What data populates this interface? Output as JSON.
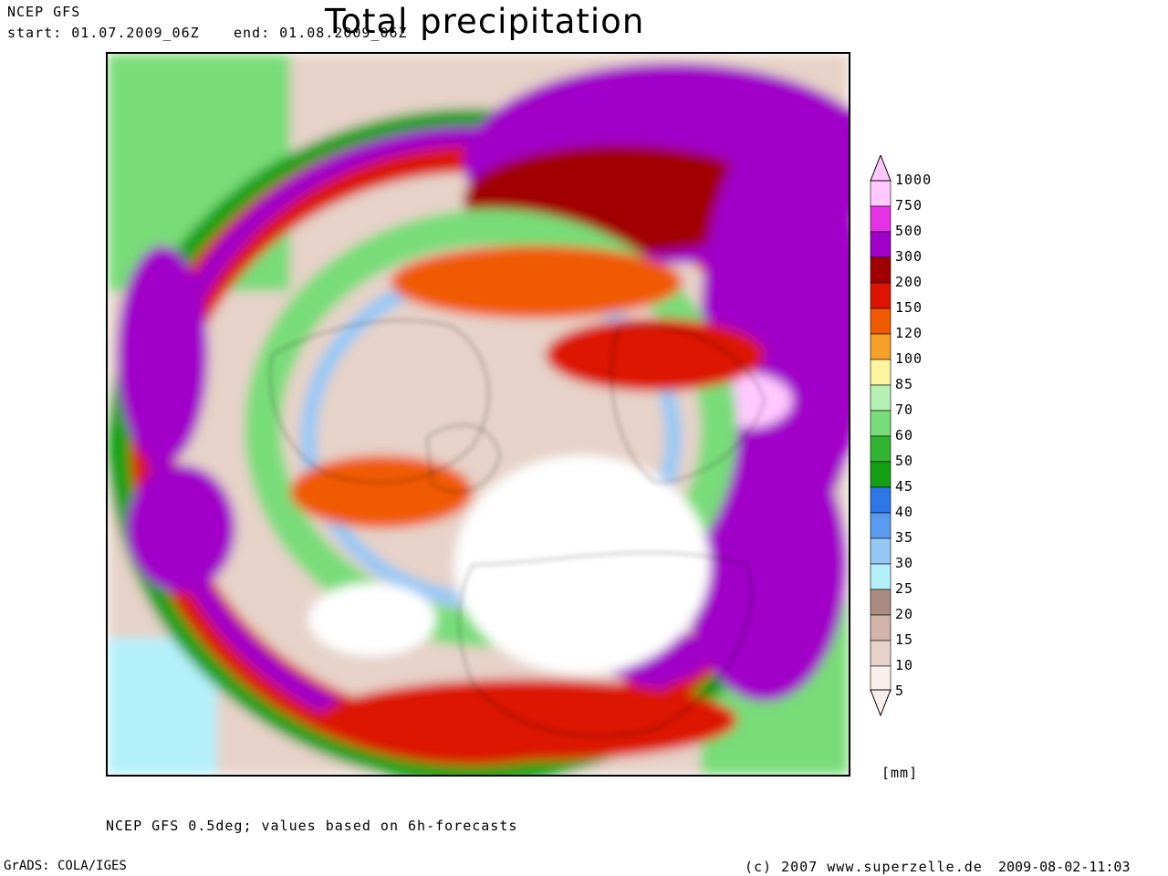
{
  "header": {
    "model": "NCEP GFS",
    "start_label": "start: 01.07.2009_06Z",
    "end_label": "end: 01.08.2009_06Z",
    "title": "Total precipitation"
  },
  "footer": {
    "note": "NCEP GFS 0.5deg; values based on 6h-forecasts",
    "software": "GrADS: COLA/IGES",
    "copyright": "(c) 2007 www.superzelle.de",
    "timestamp": "2009-08-02-11:03"
  },
  "legend": {
    "unit": "[mm]",
    "levels": [
      "1000",
      "750",
      "500",
      "300",
      "200",
      "150",
      "120",
      "100",
      "85",
      "70",
      "60",
      "50",
      "45",
      "40",
      "35",
      "30",
      "25",
      "20",
      "15",
      "10",
      "5"
    ],
    "colors": [
      "#ffc8ff",
      "#e632e6",
      "#a000c8",
      "#a00000",
      "#dc1400",
      "#f05a00",
      "#f5a028",
      "#fff5a0",
      "#b4f0b4",
      "#78dc78",
      "#32b432",
      "#14a014",
      "#2d78e6",
      "#5a9bf0",
      "#96c8f5",
      "#b4f0fa",
      "#aa8c82",
      "#d2b4aa",
      "#e6d2c8",
      "#faf0eb"
    ]
  },
  "map": {
    "projection": "north-polar-stereographic",
    "region": "Northern Hemisphere"
  }
}
